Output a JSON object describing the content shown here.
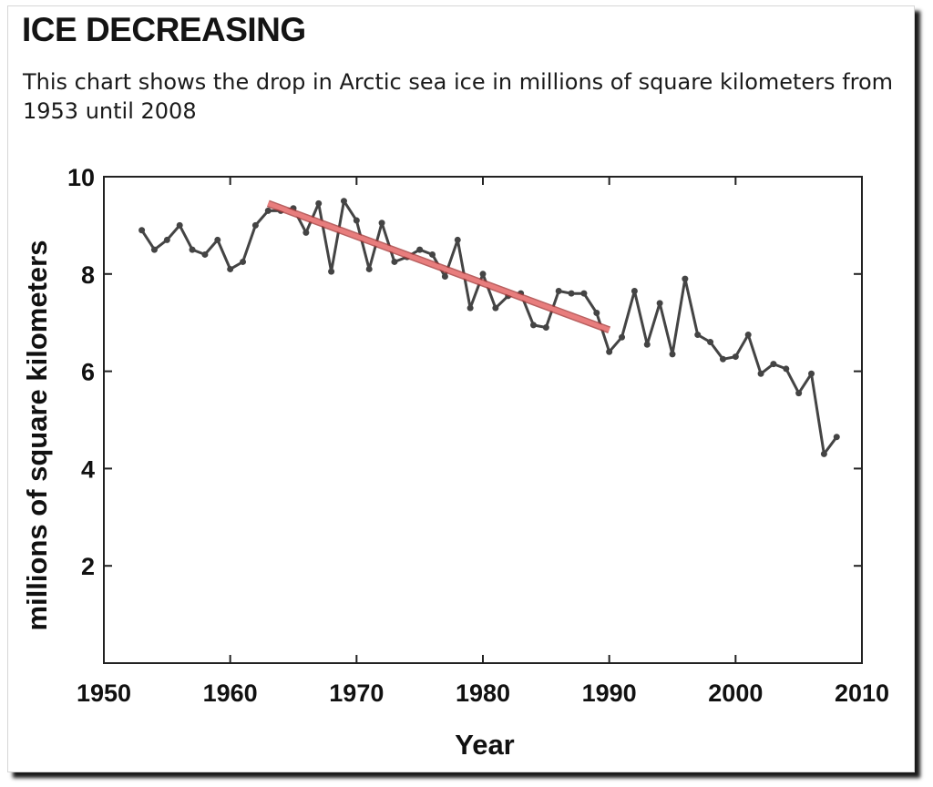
{
  "title": "ICE DECREASING",
  "subtitle": "This chart shows the drop in Arctic sea ice in millions of square kilometers from 1953 until 2008",
  "chart_data": {
    "type": "line",
    "title": "",
    "xlabel": "Year",
    "ylabel": "millions of square kilometers",
    "xlim": [
      1950,
      2010
    ],
    "ylim": [
      0,
      10
    ],
    "xticks": [
      "1950",
      "1960",
      "1970",
      "1980",
      "1990",
      "2000",
      "2010"
    ],
    "yticks": [
      "2",
      "4",
      "6",
      "8",
      "10"
    ],
    "grid": false,
    "series": [
      {
        "x": [
          1953,
          1954,
          1955,
          1956,
          1957,
          1958,
          1959,
          1960,
          1961,
          1962,
          1963,
          1964,
          1965,
          1966,
          1967,
          1968,
          1969,
          1970,
          1971,
          1972,
          1973,
          1974,
          1975,
          1976,
          1977,
          1978,
          1979,
          1980,
          1981,
          1982,
          1983,
          1984,
          1985,
          1986,
          1987,
          1988,
          1989,
          1990,
          1991,
          1992,
          1993,
          1994,
          1995,
          1996,
          1997,
          1998,
          1999,
          2000,
          2001,
          2002,
          2003,
          2004,
          2005,
          2006,
          2007,
          2008
        ],
        "values": [
          8.9,
          8.5,
          8.7,
          9.0,
          8.5,
          8.4,
          8.7,
          8.1,
          8.25,
          9.0,
          9.3,
          9.3,
          9.35,
          8.85,
          9.45,
          8.05,
          9.5,
          9.1,
          8.1,
          9.05,
          8.25,
          8.35,
          8.5,
          8.4,
          7.95,
          8.7,
          7.3,
          8.0,
          7.3,
          7.55,
          7.6,
          6.95,
          6.9,
          7.65,
          7.6,
          7.6,
          7.2,
          6.4,
          6.7,
          7.65,
          6.55,
          7.4,
          6.35,
          7.9,
          6.75,
          6.6,
          6.25,
          6.3,
          6.75,
          5.95,
          6.15,
          6.05,
          5.55,
          5.95,
          4.3,
          4.65
        ],
        "color": "#444444"
      }
    ],
    "trend_line": {
      "x": [
        1963,
        1990
      ],
      "values": [
        9.45,
        6.85
      ],
      "color": "#e87d7d"
    }
  }
}
